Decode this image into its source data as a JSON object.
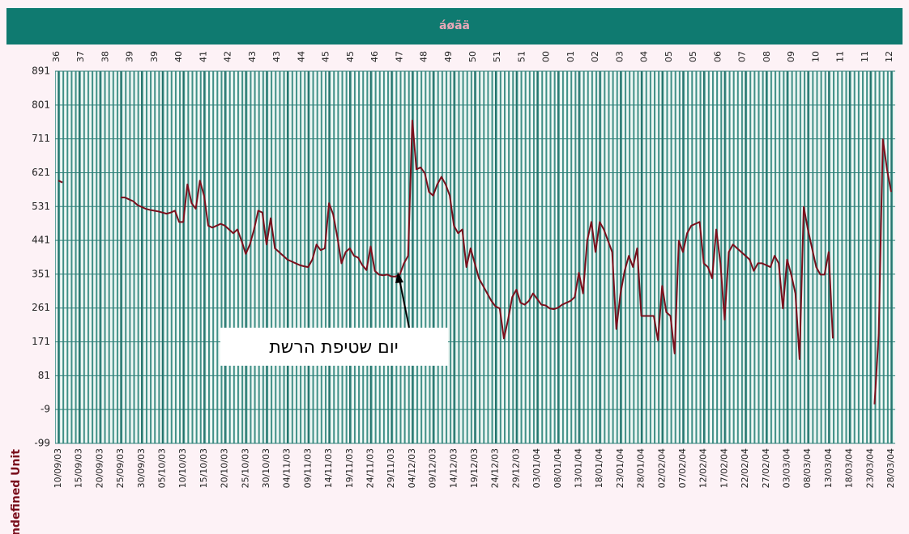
{
  "chart_data": {
    "type": "line",
    "title": "áøãä",
    "y_label": "Undefined Unit",
    "annotation": "יום שטיפת הרשת",
    "week_labels": [
      "36",
      "37",
      "38",
      "39",
      "39",
      "40",
      "41",
      "42",
      "43",
      "43",
      "44",
      "45",
      "45",
      "46",
      "47",
      "48",
      "49",
      "50",
      "51",
      "51",
      "00",
      "01",
      "02",
      "03",
      "04",
      "05",
      "05",
      "06",
      "07",
      "08",
      "09",
      "10",
      "11",
      "11",
      "12"
    ],
    "color": "#7a0f1c",
    "grid": true,
    "xlim": [
      "10/09/03",
      "28/03/04"
    ],
    "xticks": [
      "10/09/03",
      "15/09/03",
      "20/09/03",
      "25/09/03",
      "30/09/03",
      "05/10/03",
      "10/10/03",
      "15/10/03",
      "20/10/03",
      "25/10/03",
      "30/10/03",
      "04/11/03",
      "09/11/03",
      "14/11/03",
      "19/11/03",
      "24/11/03",
      "29/11/03",
      "04/12/03",
      "09/12/03",
      "14/12/03",
      "19/12/03",
      "24/12/03",
      "29/12/03",
      "03/01/04",
      "08/01/04",
      "13/01/04",
      "18/01/04",
      "23/01/04",
      "28/01/04",
      "02/02/04",
      "07/02/04",
      "12/02/04",
      "17/02/04",
      "22/02/04",
      "27/02/04",
      "03/03/04",
      "08/03/04",
      "13/03/04",
      "18/03/04",
      "23/03/04",
      "28/03/04"
    ],
    "ylim": [
      -99,
      891
    ],
    "yticks": [
      -99,
      -9,
      81,
      171,
      261,
      351,
      441,
      531,
      621,
      711,
      801,
      891
    ],
    "x": [
      "10/09/03",
      "11/09/03",
      "12/09/03",
      "13/09/03",
      "14/09/03",
      "15/09/03",
      "16/09/03",
      "17/09/03",
      "18/09/03",
      "19/09/03",
      "20/09/03",
      "21/09/03",
      "22/09/03",
      "23/09/03",
      "24/09/03",
      "25/09/03",
      "26/09/03",
      "27/09/03",
      "28/09/03",
      "29/09/03",
      "30/09/03",
      "01/10/03",
      "02/10/03",
      "03/10/03",
      "04/10/03",
      "05/10/03",
      "06/10/03",
      "07/10/03",
      "08/10/03",
      "09/10/03",
      "10/10/03",
      "11/10/03",
      "12/10/03",
      "13/10/03",
      "14/10/03",
      "15/10/03",
      "16/10/03",
      "17/10/03",
      "18/10/03",
      "19/10/03",
      "20/10/03",
      "21/10/03",
      "22/10/03",
      "23/10/03",
      "24/10/03",
      "25/10/03",
      "26/10/03",
      "27/10/03",
      "28/10/03",
      "29/10/03",
      "30/10/03",
      "31/10/03",
      "01/11/03",
      "02/11/03",
      "03/11/03",
      "04/11/03",
      "05/11/03",
      "06/11/03",
      "07/11/03",
      "08/11/03",
      "09/11/03",
      "10/11/03",
      "11/11/03",
      "12/11/03",
      "13/11/03",
      "14/11/03",
      "15/11/03",
      "16/11/03",
      "17/11/03",
      "18/11/03",
      "19/11/03",
      "20/11/03",
      "21/11/03",
      "22/11/03",
      "23/11/03",
      "24/11/03",
      "25/11/03",
      "26/11/03",
      "27/11/03",
      "28/11/03",
      "29/11/03",
      "30/11/03",
      "01/12/03",
      "02/12/03",
      "03/12/03",
      "04/12/03",
      "05/12/03",
      "06/12/03",
      "07/12/03",
      "08/12/03",
      "09/12/03",
      "10/12/03",
      "11/12/03",
      "12/12/03",
      "13/12/03",
      "14/12/03",
      "15/12/03",
      "16/12/03",
      "17/12/03",
      "18/12/03",
      "19/12/03",
      "20/12/03",
      "21/12/03",
      "22/12/03",
      "23/12/03",
      "24/12/03",
      "25/12/03",
      "26/12/03",
      "27/12/03",
      "28/12/03",
      "29/12/03",
      "30/12/03",
      "31/12/03",
      "01/01/04",
      "02/01/04",
      "03/01/04",
      "04/01/04",
      "05/01/04",
      "06/01/04",
      "07/01/04",
      "08/01/04",
      "09/01/04",
      "10/01/04",
      "11/01/04",
      "12/01/04",
      "13/01/04",
      "14/01/04",
      "15/01/04",
      "16/01/04",
      "17/01/04",
      "18/01/04",
      "19/01/04",
      "20/01/04",
      "21/01/04",
      "22/01/04",
      "23/01/04",
      "24/01/04",
      "25/01/04",
      "26/01/04",
      "27/01/04",
      "28/01/04",
      "29/01/04",
      "30/01/04",
      "31/01/04",
      "01/02/04",
      "02/02/04",
      "03/02/04",
      "04/02/04",
      "05/02/04",
      "06/02/04",
      "07/02/04",
      "08/02/04",
      "09/02/04",
      "10/02/04",
      "11/02/04",
      "12/02/04",
      "13/02/04",
      "14/02/04",
      "15/02/04",
      "16/02/04",
      "17/02/04",
      "18/02/04",
      "19/02/04",
      "20/02/04",
      "21/02/04",
      "22/02/04",
      "23/02/04",
      "24/02/04",
      "25/02/04",
      "26/02/04",
      "27/02/04",
      "28/02/04",
      "29/02/04",
      "01/03/04",
      "02/03/04",
      "03/03/04",
      "04/03/04",
      "05/03/04",
      "06/03/04",
      "07/03/04",
      "08/03/04",
      "09/03/04",
      "10/03/04",
      "11/03/04",
      "12/03/04",
      "13/03/04",
      "14/03/04",
      "15/03/04",
      "16/03/04",
      "17/03/04",
      "18/03/04",
      "19/03/04",
      "20/03/04",
      "21/03/04",
      "22/03/04",
      "23/03/04",
      "24/03/04",
      "25/03/04",
      "26/03/04",
      "27/03/04",
      "28/03/04"
    ],
    "values": [
      600,
      595,
      null,
      null,
      null,
      null,
      null,
      null,
      null,
      null,
      null,
      null,
      null,
      null,
      null,
      555,
      555,
      550,
      545,
      535,
      530,
      525,
      522,
      520,
      518,
      515,
      512,
      515,
      520,
      490,
      490,
      590,
      540,
      525,
      600,
      560,
      480,
      475,
      480,
      485,
      480,
      470,
      460,
      470,
      440,
      405,
      430,
      470,
      520,
      515,
      430,
      500,
      420,
      410,
      400,
      390,
      385,
      380,
      375,
      372,
      370,
      390,
      430,
      415,
      420,
      540,
      510,
      450,
      380,
      410,
      420,
      400,
      395,
      375,
      362,
      425,
      360,
      350,
      348,
      350,
      345,
      345,
      350,
      380,
      400,
      760,
      630,
      635,
      620,
      570,
      560,
      590,
      610,
      590,
      560,
      480,
      460,
      470,
      370,
      420,
      380,
      340,
      320,
      300,
      280,
      265,
      260,
      180,
      230,
      290,
      310,
      275,
      270,
      280,
      300,
      285,
      270,
      268,
      260,
      258,
      262,
      270,
      275,
      280,
      290,
      355,
      300,
      440,
      490,
      410,
      490,
      470,
      440,
      410,
      205,
      300,
      360,
      400,
      370,
      420,
      240,
      240,
      240,
      240,
      175,
      320,
      250,
      240,
      140,
      440,
      410,
      460,
      480,
      485,
      490,
      380,
      370,
      340,
      470,
      380,
      230,
      410,
      430,
      420,
      410,
      400,
      390,
      360,
      380,
      380,
      375,
      370,
      400,
      380,
      260,
      390,
      350,
      300,
      125,
      530,
      470,
      420,
      370,
      350,
      350,
      410,
      180,
      null,
      null,
      null,
      null,
      null,
      null,
      null,
      null,
      null,
      5,
      190,
      710,
      630,
      570
    ]
  }
}
